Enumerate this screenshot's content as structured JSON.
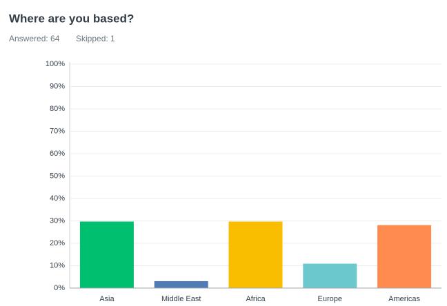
{
  "chart_data": {
    "type": "bar",
    "title": "Where are you based?",
    "answered": "Answered: 64",
    "skipped": "Skipped: 1",
    "categories": [
      "Asia",
      "Middle East",
      "Africa",
      "Europe",
      "Americas"
    ],
    "values": [
      29.7,
      3.1,
      29.7,
      10.9,
      28.1
    ],
    "colors": [
      "#00bf6f",
      "#507cb6",
      "#f9be00",
      "#6bc8cd",
      "#ff8b4f"
    ],
    "ylim": [
      0,
      100
    ],
    "yticks": [
      {
        "value": 0,
        "label": "0%"
      },
      {
        "value": 10,
        "label": "10%"
      },
      {
        "value": 20,
        "label": "20%"
      },
      {
        "value": 30,
        "label": "30%"
      },
      {
        "value": 40,
        "label": "40%"
      },
      {
        "value": 50,
        "label": "50%"
      },
      {
        "value": 60,
        "label": "60%"
      },
      {
        "value": 70,
        "label": "70%"
      },
      {
        "value": 80,
        "label": "80%"
      },
      {
        "value": 90,
        "label": "90%"
      },
      {
        "value": 100,
        "label": "100%"
      }
    ],
    "grid": true
  }
}
